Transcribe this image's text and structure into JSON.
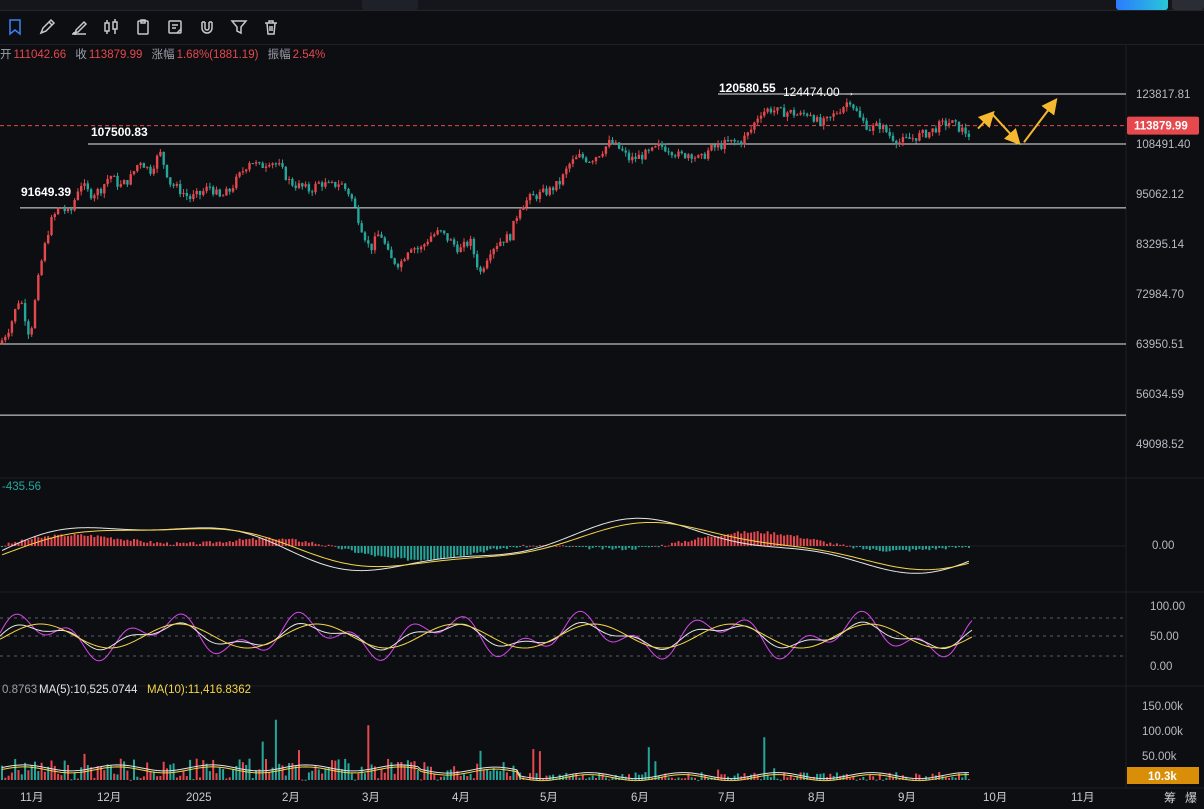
{
  "ohlc_bar": {
    "open_label": "开",
    "open_value": "111042.66",
    "close_label": "收",
    "close_value": "113879.99",
    "change_label": "涨幅",
    "change_value": "1.68%(1881.19)",
    "amplitude_label": "振幅",
    "amplitude_value": "2.54%"
  },
  "toolbar": {
    "items": [
      "bookmark-icon",
      "pencil-icon",
      "brush-icon",
      "candles-icon",
      "clipboard-icon",
      "note-icon",
      "magnet-icon",
      "filter-icon",
      "trash-icon"
    ]
  },
  "current_price_label": "113879.99",
  "annotations": [
    "120580.55",
    "124474.00",
    "107500.83",
    "91649.39"
  ],
  "colors": {
    "up": "#e5484d",
    "down": "#26a69a",
    "ma_white": "#e6e6e6",
    "ma_yellow": "#f5d547",
    "ma_pink": "#d946ef",
    "arrow": "#f5b82e",
    "price_tag": "#e5484d",
    "volume_tag": "#d98e0a"
  },
  "macd_label": "-435.56",
  "volume_legend": {
    "lead": "0.8763",
    "ma5": "MA(5):10,525.0744",
    "ma10": "MA(10):11,416.8362"
  },
  "volume_tag": "10.3k",
  "corner_buttons": [
    "筹",
    "爆"
  ],
  "chart_data": {
    "type": "candlestick",
    "price_axis_ticks": [
      "123817.81",
      "108491.40",
      "95062.12",
      "83295.14",
      "72984.70",
      "63950.51",
      "56034.59",
      "49098.52"
    ],
    "macd_axis_ticks": [
      "0.00"
    ],
    "kdj_axis_ticks": [
      "100.00",
      "50.00",
      "0.00"
    ],
    "volume_axis_ticks": [
      "150.00k",
      "100.00k",
      "50.00k"
    ],
    "x_ticks": [
      "11月",
      "12月",
      "2025",
      "2月",
      "3月",
      "4月",
      "5月",
      "6月",
      "7月",
      "8月",
      "9月",
      "10月",
      "11月"
    ],
    "horizontal_levels": [
      123817.81,
      108491.4,
      91649.39,
      63950.51,
      53000
    ],
    "price_path": [
      [
        0,
        64000
      ],
      [
        10,
        67000
      ],
      [
        20,
        72500
      ],
      [
        30,
        65000
      ],
      [
        40,
        78000
      ],
      [
        50,
        88000
      ],
      [
        60,
        92000
      ],
      [
        70,
        90000
      ],
      [
        80,
        98000
      ],
      [
        90,
        95000
      ],
      [
        100,
        96000
      ],
      [
        110,
        100000
      ],
      [
        120,
        97000
      ],
      [
        130,
        99000
      ],
      [
        140,
        104000
      ],
      [
        150,
        101000
      ],
      [
        160,
        106000
      ],
      [
        170,
        98000
      ],
      [
        180,
        96000
      ],
      [
        190,
        94000
      ],
      [
        200,
        95000
      ],
      [
        210,
        97000
      ],
      [
        220,
        94000
      ],
      [
        230,
        96000
      ],
      [
        240,
        100000
      ],
      [
        250,
        104000
      ],
      [
        260,
        102000
      ],
      [
        270,
        104000
      ],
      [
        280,
        102000
      ],
      [
        290,
        98000
      ],
      [
        300,
        97000
      ],
      [
        310,
        96000
      ],
      [
        320,
        98000
      ],
      [
        330,
        97000
      ],
      [
        340,
        98000
      ],
      [
        350,
        95000
      ],
      [
        360,
        88000
      ],
      [
        370,
        82000
      ],
      [
        380,
        86000
      ],
      [
        390,
        80000
      ],
      [
        400,
        79000
      ],
      [
        410,
        83000
      ],
      [
        420,
        82000
      ],
      [
        430,
        85000
      ],
      [
        440,
        86000
      ],
      [
        450,
        84000
      ],
      [
        460,
        82000
      ],
      [
        470,
        84000
      ],
      [
        480,
        77000
      ],
      [
        490,
        82000
      ],
      [
        500,
        84000
      ],
      [
        510,
        85000
      ],
      [
        520,
        92000
      ],
      [
        530,
        94000
      ],
      [
        540,
        95000
      ],
      [
        550,
        96000
      ],
      [
        560,
        98000
      ],
      [
        570,
        103000
      ],
      [
        580,
        105000
      ],
      [
        590,
        104000
      ],
      [
        600,
        106000
      ],
      [
        610,
        109000
      ],
      [
        620,
        107000
      ],
      [
        630,
        104000
      ],
      [
        640,
        105000
      ],
      [
        650,
        106000
      ],
      [
        660,
        108000
      ],
      [
        670,
        107000
      ],
      [
        680,
        105000
      ],
      [
        690,
        106000
      ],
      [
        700,
        104000
      ],
      [
        710,
        107000
      ],
      [
        720,
        108000
      ],
      [
        730,
        109000
      ],
      [
        740,
        109000
      ],
      [
        750,
        112000
      ],
      [
        760,
        118000
      ],
      [
        770,
        119000
      ],
      [
        780,
        118000
      ],
      [
        790,
        118000
      ],
      [
        800,
        117000
      ],
      [
        810,
        118000
      ],
      [
        820,
        114000
      ],
      [
        830,
        116000
      ],
      [
        840,
        119000
      ],
      [
        850,
        122000
      ],
      [
        860,
        116000
      ],
      [
        870,
        113000
      ],
      [
        880,
        114000
      ],
      [
        890,
        111000
      ],
      [
        900,
        109000
      ],
      [
        910,
        110000
      ],
      [
        920,
        111000
      ],
      [
        930,
        112000
      ],
      [
        940,
        114000
      ],
      [
        950,
        115000
      ],
      [
        960,
        113000
      ],
      [
        970,
        111000
      ],
      [
        975,
        113879.99
      ]
    ],
    "projection_arrows": [
      [
        [
          978,
          113000
        ],
        [
          992,
          117500
        ]
      ],
      [
        [
          992,
          117500
        ],
        [
          1018,
          109000
        ]
      ],
      [
        [
          1024,
          109000
        ],
        [
          1055,
          121500
        ]
      ]
    ]
  }
}
